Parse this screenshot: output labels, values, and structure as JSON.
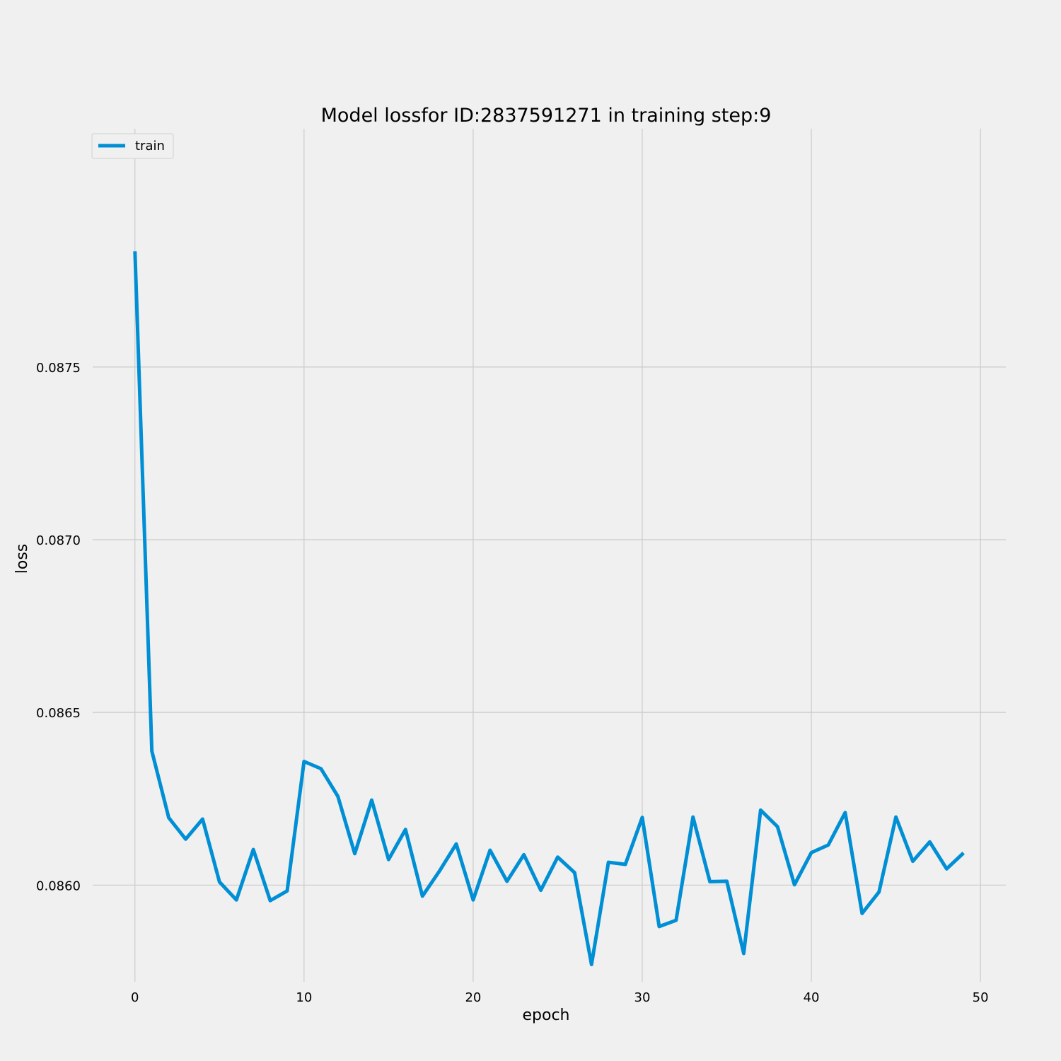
{
  "chart_data": {
    "type": "line",
    "title": "Model lossfor ID:2837591271 in training step:9",
    "xlabel": "epoch",
    "ylabel": "loss",
    "xlim": [
      -2.5,
      51.5
    ],
    "ylim": [
      0.08572,
      0.08819
    ],
    "x_ticks": [
      0,
      10,
      20,
      30,
      40,
      50
    ],
    "x_tick_labels": [
      "0",
      "10",
      "20",
      "30",
      "40",
      "50"
    ],
    "y_ticks": [
      0.086,
      0.0865,
      0.087,
      0.0875
    ],
    "y_tick_labels": [
      "0.0860",
      "0.0865",
      "0.0870",
      "0.0875"
    ],
    "grid": true,
    "legend_position": "top-left",
    "series": [
      {
        "name": "train",
        "color": "#008fd5",
        "x": [
          0,
          1,
          2,
          3,
          4,
          5,
          6,
          7,
          8,
          9,
          10,
          11,
          12,
          13,
          14,
          15,
          16,
          17,
          18,
          19,
          20,
          21,
          22,
          23,
          24,
          25,
          26,
          27,
          28,
          29,
          30,
          31,
          32,
          33,
          34,
          35,
          36,
          37,
          38,
          39,
          40,
          41,
          42,
          43,
          44,
          45,
          46,
          47,
          48,
          49
        ],
        "y": [
          0.087835,
          0.086388,
          0.086195,
          0.086133,
          0.086191,
          0.086009,
          0.085957,
          0.086103,
          0.085955,
          0.085983,
          0.086358,
          0.086337,
          0.086257,
          0.086091,
          0.086246,
          0.086074,
          0.086161,
          0.085968,
          0.08604,
          0.086119,
          0.085957,
          0.086101,
          0.086011,
          0.086088,
          0.085985,
          0.086081,
          0.086036,
          0.08577,
          0.086066,
          0.08606,
          0.086196,
          0.08588,
          0.085898,
          0.086197,
          0.08601,
          0.086011,
          0.085802,
          0.086217,
          0.086169,
          0.086001,
          0.086094,
          0.086116,
          0.08621,
          0.085918,
          0.08598,
          0.086197,
          0.086069,
          0.086125,
          0.086047,
          0.086093
        ]
      }
    ]
  }
}
